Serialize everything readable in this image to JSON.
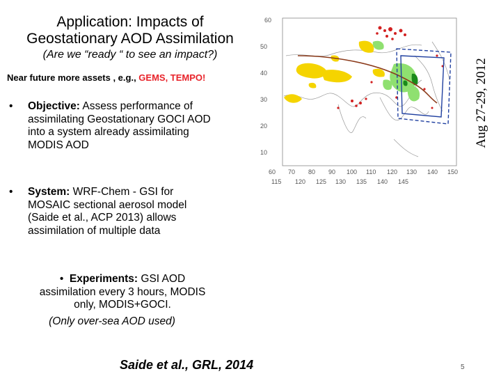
{
  "slide": {
    "title_line1": "Application: Impacts of",
    "title_line2": "Geostationary AOD Assimilation",
    "subtitle": "(Are we “ready “ to see an impact?)",
    "near_future_prefix": "Near future more assets , e.g., ",
    "near_future_highlight": "GEMS, TEMPO",
    "near_future_suffix": "!",
    "bullet_symbol": "•",
    "objective_label": "Objective:",
    "objective_text": " Assess performance of assimilating Geostationary GOCI AOD into a system already assimilating MODIS AOD",
    "system_label": "System:",
    "system_text": " WRF-Chem - GSI for MOSAIC sectional aerosol model (Saide et al., ACP 2013) allows assimilation of multiple data",
    "experiments_label": "Experiments:",
    "experiments_text": " GSI AOD assimilation every 3 hours, MODIS only, MODIS+GOCI.",
    "experiments_note": "(Only over-sea AOD used)",
    "citation": "Saide et al., GRL, 2014",
    "date_vertical": "Aug 27-29, 2012",
    "page_number": "5"
  },
  "map": {
    "lat_labels": [
      "60",
      "50",
      "40",
      "30",
      "20",
      "10"
    ],
    "lon_labels_top": [
      "60",
      "70",
      "80",
      "90",
      "100",
      "110",
      "120",
      "130",
      "140",
      "150"
    ],
    "lon_labels_bottom": [
      "115",
      "120",
      "125",
      "130",
      "135",
      "140",
      "145"
    ],
    "colors": {
      "modis_land": "#f5d400",
      "goci": "#8fe070",
      "goci_dark": "#1a8a1a",
      "points": "#d22020",
      "track": "#8b3a1a",
      "domain_box": "#2040a0"
    }
  }
}
